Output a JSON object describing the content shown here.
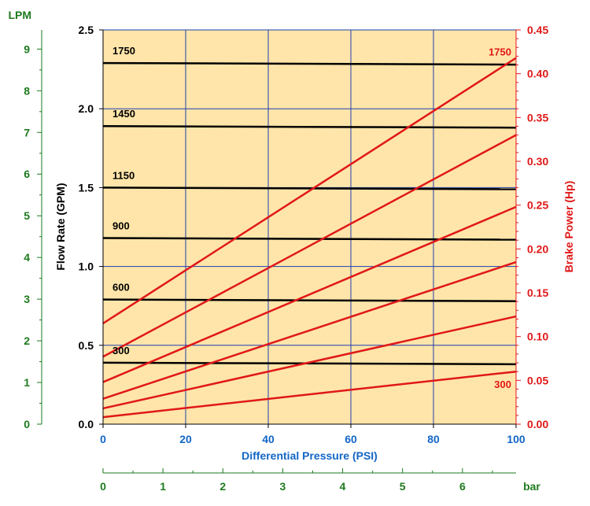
{
  "chart_data": {
    "type": "line",
    "x": [
      0,
      100
    ],
    "xlabel": "Differential Pressure (PSI)",
    "xlim": [
      0,
      100
    ],
    "x_ticks": [
      0,
      20,
      40,
      60,
      80,
      100
    ],
    "ylabel_left": "Flow Rate (GPM)",
    "ylim_left": [
      0,
      2.5
    ],
    "y_ticks_left": [
      0.0,
      0.5,
      1.0,
      1.5,
      2.0,
      2.5
    ],
    "ylabel_right": "Brake Power (Hp)",
    "ylim_right": [
      0,
      0.45
    ],
    "y_ticks_right": [
      0.0,
      0.05,
      0.1,
      0.15,
      0.2,
      0.25,
      0.3,
      0.35,
      0.4,
      0.45
    ],
    "lpm_axis": {
      "label": "LPM",
      "lim": [
        0,
        9.46
      ],
      "ticks": [
        0,
        1,
        2,
        3,
        4,
        5,
        6,
        7,
        8,
        9
      ]
    },
    "bar_axis": {
      "label": "bar",
      "lim": [
        0,
        6.895
      ],
      "ticks": [
        0,
        1,
        2,
        3,
        4,
        5,
        6
      ]
    },
    "grid": true,
    "flow_series": [
      {
        "name": "1750",
        "values": [
          2.29,
          2.28
        ]
      },
      {
        "name": "1450",
        "values": [
          1.89,
          1.88
        ]
      },
      {
        "name": "1150",
        "values": [
          1.5,
          1.49
        ]
      },
      {
        "name": "900",
        "values": [
          1.18,
          1.17
        ]
      },
      {
        "name": "600",
        "values": [
          0.79,
          0.78
        ]
      },
      {
        "name": "300",
        "values": [
          0.39,
          0.38
        ]
      }
    ],
    "power_series": [
      {
        "name": "1750",
        "values": [
          0.115,
          0.418
        ]
      },
      {
        "name": "",
        "values": [
          0.077,
          0.33
        ]
      },
      {
        "name": "",
        "values": [
          0.048,
          0.248
        ]
      },
      {
        "name": "",
        "values": [
          0.029,
          0.185
        ]
      },
      {
        "name": "",
        "values": [
          0.018,
          0.123
        ]
      },
      {
        "name": "300",
        "values": [
          0.008,
          0.06
        ]
      }
    ],
    "colors": {
      "background": "#FFE5A9",
      "grid": "#1F3FB0",
      "flow": "#000000",
      "power": "#E01818",
      "lpm": "#1E7A1E",
      "psi": "#1366C7"
    }
  }
}
